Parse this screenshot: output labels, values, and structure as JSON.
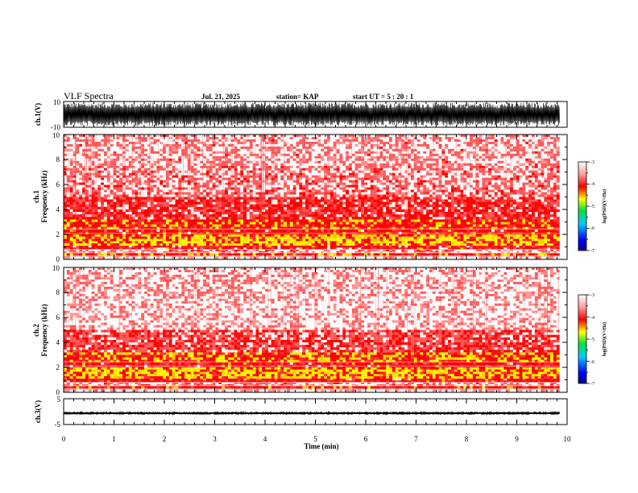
{
  "header": {
    "title": "VLF Spectra",
    "date": "Jul. 21, 2025",
    "station": "station= KAP",
    "start_ut": "start  UT =   5 : 20 : 1"
  },
  "chart_data": {
    "type": "heatmap",
    "title": "VLF Spectra",
    "xlabel": "Time (min)",
    "xlim": [
      0,
      10
    ],
    "xticks": [
      "0",
      "1",
      "2",
      "3",
      "4",
      "5",
      "6",
      "7",
      "8",
      "9",
      "10"
    ],
    "data_end_min": 9.85,
    "panels": [
      {
        "id": "ch1-waveform",
        "type": "line",
        "ylabel": "ch.1(V)",
        "ylim": [
          -10,
          10
        ],
        "yticks": [
          "10",
          "-10"
        ],
        "typical_amplitude_v": 9
      },
      {
        "id": "ch1-spectrogram",
        "type": "heatmap",
        "ylabel_channel": "ch.1",
        "ylabel": "Frequency (kHz)",
        "ylim": [
          0,
          10
        ],
        "yticks": [
          "0",
          "2",
          "4",
          "6",
          "8",
          "10"
        ],
        "bands_khz": [
          {
            "from": 0.0,
            "to": 0.25,
            "level": 0.1
          },
          {
            "from": 0.25,
            "to": 0.5,
            "level": 0.75
          },
          {
            "from": 0.5,
            "to": 0.8,
            "level": 0.3
          },
          {
            "from": 0.8,
            "to": 1.1,
            "level": 0.55
          },
          {
            "from": 1.1,
            "to": 2.0,
            "level": 0.92
          },
          {
            "from": 2.0,
            "to": 2.4,
            "level": 0.6
          },
          {
            "from": 2.4,
            "to": 3.2,
            "level": 0.75
          },
          {
            "from": 3.2,
            "to": 5.0,
            "level": 0.5
          },
          {
            "from": 5.0,
            "to": 7.5,
            "level": 0.33
          },
          {
            "from": 7.5,
            "to": 10.0,
            "level": 0.28
          }
        ],
        "colorbar": {
          "ticks": [
            "-3",
            "-4",
            "-5",
            "-6",
            "-7"
          ],
          "range": [
            -7,
            -3
          ],
          "label": "log(PSD)(V²/Hz)"
        }
      },
      {
        "id": "ch2-spectrogram",
        "type": "heatmap",
        "ylabel_channel": "ch.2",
        "ylabel": "Frequency (kHz)",
        "ylim": [
          0,
          10
        ],
        "yticks": [
          "0",
          "2",
          "4",
          "6",
          "8",
          "10"
        ],
        "bands_khz": [
          {
            "from": 0.0,
            "to": 0.25,
            "level": 0.1
          },
          {
            "from": 0.25,
            "to": 0.5,
            "level": 0.7
          },
          {
            "from": 0.5,
            "to": 0.8,
            "level": 0.3
          },
          {
            "from": 0.8,
            "to": 1.1,
            "level": 0.6
          },
          {
            "from": 1.1,
            "to": 2.0,
            "level": 0.95
          },
          {
            "from": 2.0,
            "to": 2.4,
            "level": 0.6
          },
          {
            "from": 2.4,
            "to": 3.2,
            "level": 0.8
          },
          {
            "from": 3.2,
            "to": 5.0,
            "level": 0.45
          },
          {
            "from": 5.0,
            "to": 7.5,
            "level": 0.2
          },
          {
            "from": 7.5,
            "to": 10.0,
            "level": 0.22
          }
        ],
        "colorbar": {
          "ticks": [
            "-3",
            "-4",
            "-5",
            "-6",
            "-7"
          ],
          "range": [
            -7,
            -3
          ],
          "label": "log(PSD)(V²/Hz)"
        }
      },
      {
        "id": "ch3-waveform",
        "type": "line",
        "ylabel": "ch.3(V)",
        "ylim": [
          -5,
          5
        ],
        "yticks": [
          "5",
          "-5"
        ],
        "typical_amplitude_v": 0.35,
        "offset_v": -0.6
      }
    ],
    "colors": {
      "axis": "#000000",
      "low": "#0000cc",
      "high": "#ff0000",
      "background": "#ffffff"
    }
  }
}
